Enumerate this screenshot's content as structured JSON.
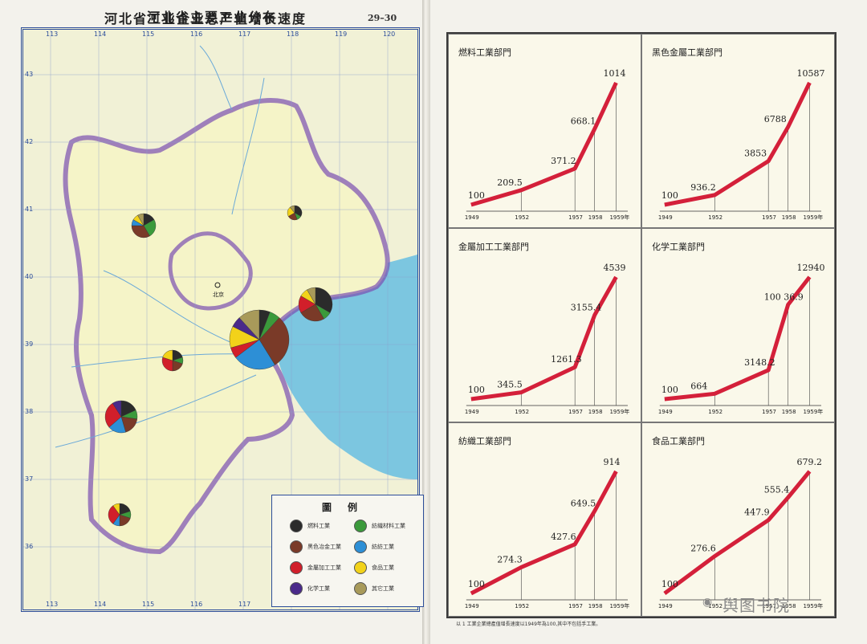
{
  "map": {
    "title": "河北省主要工业分布",
    "lon_ticks_top": [
      "113",
      "114",
      "115",
      "116",
      "117",
      "118",
      "119",
      "120"
    ],
    "lon_ticks_bottom": [
      "113",
      "114",
      "115",
      "116",
      "117",
      "118",
      "119",
      "120"
    ],
    "lat_ticks": [
      "43",
      "42",
      "41",
      "40",
      "39",
      "38",
      "37",
      "36"
    ],
    "capital_label": "北京",
    "legend": {
      "title": "圖例",
      "items": [
        {
          "label": "燃料工業",
          "color": "#2b2b2b"
        },
        {
          "label": "紡織材料工業",
          "color": "#3b9a3b"
        },
        {
          "label": "黑色冶金工業",
          "color": "#7a3a28"
        },
        {
          "label": "紡紡工業",
          "color": "#2d8fd6"
        },
        {
          "label": "金屬加工工業",
          "color": "#d11f2a"
        },
        {
          "label": "食品工業",
          "color": "#f2d21a"
        },
        {
          "label": "化学工業",
          "color": "#4a2a8a"
        },
        {
          "label": "其它工業",
          "color": "#a89a5a"
        }
      ]
    }
  },
  "charts": {
    "title": "河北省工业企业总产值增长速度",
    "page_number": "29–30",
    "line_color": "#d4203a",
    "x_tick_labels": [
      "1949",
      "1952",
      "1957",
      "1958",
      "1959年"
    ],
    "footnote": "以 1 工業企業總產值增長速度以1949年為100,其中不包括手工業。",
    "chart_data": [
      {
        "type": "line",
        "title": "燃料工業部門",
        "x": [
          "1949",
          "1952",
          "1957",
          "1958",
          "1959"
        ],
        "values": [
          100,
          209.5,
          371.2,
          668.1,
          1014
        ],
        "labels": [
          "100",
          "209.5",
          "371.2",
          "668.1",
          "1014"
        ]
      },
      {
        "type": "line",
        "title": "黑色金屬工業部門",
        "x": [
          "1949",
          "1952",
          "1957",
          "1958",
          "1959"
        ],
        "values": [
          100,
          936.2,
          3853,
          6788,
          10587
        ],
        "labels": [
          "100",
          "936.2",
          "3853",
          "6788",
          "10587"
        ]
      },
      {
        "type": "line",
        "title": "金屬加工工業部門",
        "x": [
          "1949",
          "1952",
          "1957",
          "1958",
          "1959"
        ],
        "values": [
          100,
          345.5,
          1261.3,
          3155.4,
          4539
        ],
        "labels": [
          "100",
          "345.5",
          "1261.3",
          "3155.4",
          "4539"
        ]
      },
      {
        "type": "line",
        "title": "化学工業部門",
        "x": [
          "1949",
          "1952",
          "1957",
          "1958",
          "1959"
        ],
        "values": [
          100,
          664,
          3148.2,
          10036.9,
          12940
        ],
        "labels": [
          "100",
          "664",
          "3148.2",
          "100 36.9",
          "12940"
        ]
      },
      {
        "type": "line",
        "title": "紡織工業部門",
        "x": [
          "1949",
          "1952",
          "1957",
          "1958",
          "1959"
        ],
        "values": [
          100,
          274.3,
          427.6,
          649.5,
          914
        ],
        "labels": [
          "100",
          "274.3",
          "427.6",
          "649.5",
          "914"
        ]
      },
      {
        "type": "line",
        "title": "食品工業部門",
        "x": [
          "1949",
          "1952",
          "1957",
          "1958",
          "1959"
        ],
        "values": [
          100,
          276.6,
          447.9,
          555.4,
          679.2
        ],
        "labels": [
          "100",
          "276.6",
          "447.9",
          "555.4",
          "679.2"
        ]
      }
    ]
  },
  "watermark": "舆图书院"
}
